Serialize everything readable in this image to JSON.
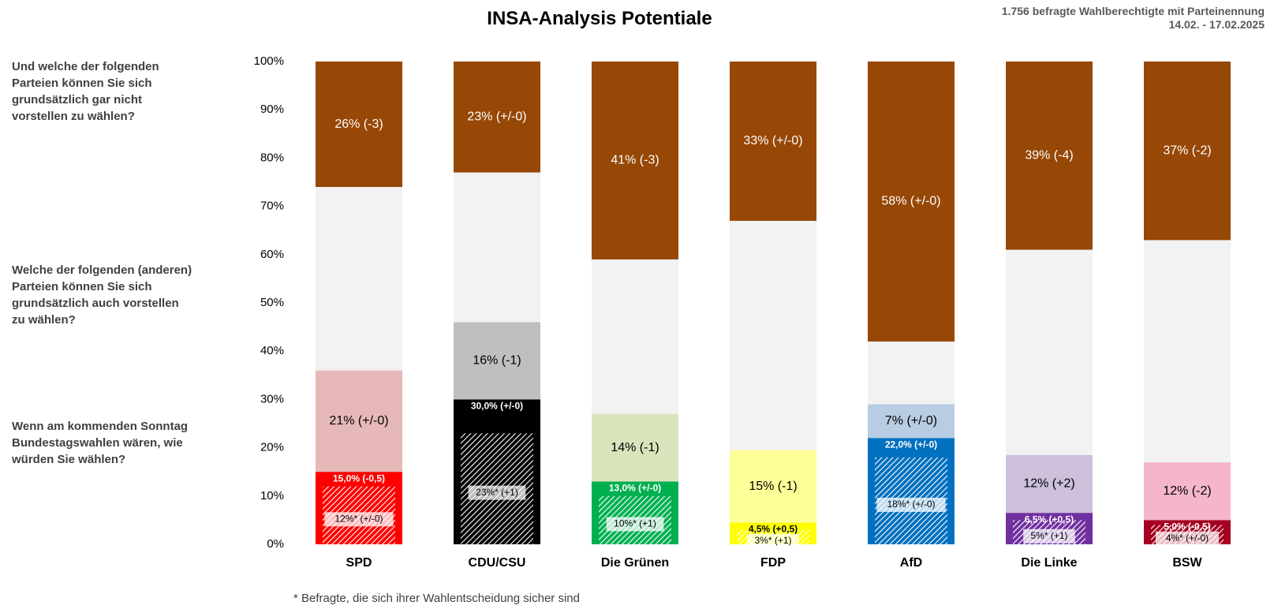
{
  "header": {
    "title": "INSA-Analysis Potentiale",
    "meta_line1": "1.756 befragte Wahlberechtigte mit Parteinennung",
    "meta_line2": "14.02. - 17.02.2025"
  },
  "questions": {
    "q1": "Und welche der folgenden Parteien können Sie sich grundsätzlich gar nicht vorstellen zu wählen?",
    "q2": "Welche der folgenden (anderen) Parteien können Sie sich grundsätzlich auch vorstellen zu wählen?",
    "q3": "Wenn am kommenden Sonntag Bundestagswahlen wären, wie würden Sie wählen?"
  },
  "footnote": "* Befragte, die sich ihrer Wahlentscheidung sicher sind",
  "chart_data": {
    "type": "bar",
    "stacked": true,
    "ylim": [
      0,
      100
    ],
    "yticks": [
      "0%",
      "10%",
      "20%",
      "30%",
      "40%",
      "50%",
      "60%",
      "70%",
      "80%",
      "90%",
      "100%"
    ],
    "grid": false,
    "categories": [
      "SPD",
      "CDU/CSU",
      "Die Grünen",
      "FDP",
      "AfD",
      "Die Linke",
      "BSW"
    ],
    "parties": [
      {
        "name": "SPD",
        "vote": 15.0,
        "vote_label": "15,0% (-0,5)",
        "sure": 12,
        "sure_label": "12%* (+/-0)",
        "potential": 21,
        "potential_label": "21% (+/-0)",
        "reject": 26,
        "reject_label": "26% (-3)",
        "color": "#ff0000",
        "potential_color": "#e6b9b8",
        "vote_label_color": "#ffffff"
      },
      {
        "name": "CDU/CSU",
        "vote": 30.0,
        "vote_label": "30,0% (+/-0)",
        "sure": 23,
        "sure_label": "23%* (+1)",
        "potential": 16,
        "potential_label": "16% (-1)",
        "reject": 23,
        "reject_label": "23% (+/-0)",
        "color": "#000000",
        "potential_color": "#bfbfbf",
        "vote_label_color": "#ffffff"
      },
      {
        "name": "Die Grünen",
        "vote": 13.0,
        "vote_label": "13,0% (+/-0)",
        "sure": 10,
        "sure_label": "10%* (+1)",
        "potential": 14,
        "potential_label": "14% (-1)",
        "reject": 41,
        "reject_label": "41% (-3)",
        "color": "#00b050",
        "potential_color": "#d8e4bc",
        "vote_label_color": "#ffffff"
      },
      {
        "name": "FDP",
        "vote": 4.5,
        "vote_label": "4,5% (+0,5)",
        "sure": 3,
        "sure_label": "3%* (+1)",
        "potential": 15,
        "potential_label": "15% (-1)",
        "reject": 33,
        "reject_label": "33% (+/-0)",
        "color": "#ffff00",
        "potential_color": "#ffff99",
        "vote_label_color": "#000000"
      },
      {
        "name": "AfD",
        "vote": 22.0,
        "vote_label": "22,0% (+/-0)",
        "sure": 18,
        "sure_label": "18%* (+/-0)",
        "potential": 7,
        "potential_label": "7% (+/-0)",
        "reject": 58,
        "reject_label": "58% (+/-0)",
        "color": "#0070c0",
        "potential_color": "#b8cce4",
        "vote_label_color": "#ffffff"
      },
      {
        "name": "Die Linke",
        "vote": 6.5,
        "vote_label": "6,5% (+0,5)",
        "sure": 5,
        "sure_label": "5%* (+1)",
        "potential": 12,
        "potential_label": "12% (+2)",
        "reject": 39,
        "reject_label": "39% (-4)",
        "color": "#7030a0",
        "potential_color": "#ccc0da",
        "vote_label_color": "#ffffff"
      },
      {
        "name": "BSW",
        "vote": 5.0,
        "vote_label": "5,0% (-0,5)",
        "sure": 4,
        "sure_label": "4%* (+/-0)",
        "potential": 12,
        "potential_label": "12% (-2)",
        "reject": 37,
        "reject_label": "37% (-2)",
        "color": "#a50021",
        "potential_color": "#f4b6c8",
        "vote_label_color": "#ffffff"
      }
    ],
    "neutral_color": "#f2f2f2",
    "reject_color": "#974706"
  }
}
